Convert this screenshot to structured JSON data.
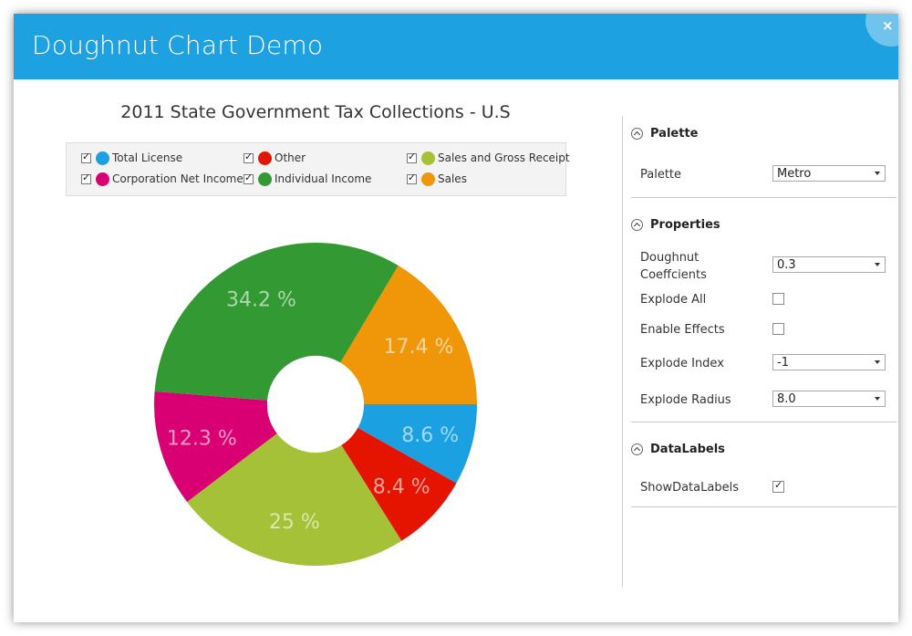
{
  "window": {
    "title": "Doughnut Chart Demo",
    "close_label": "×"
  },
  "chart_data": {
    "type": "doughnut",
    "title": "2011 State Government Tax Collections - U.S",
    "doughnut_coefficient": 0.3,
    "series": [
      {
        "name": "Total License",
        "value": 8.6,
        "label": "8.6 %",
        "color": "#1ba1e2"
      },
      {
        "name": "Other",
        "value": 8.4,
        "label": "8.4 %",
        "color": "#e51400"
      },
      {
        "name": "Sales and Gross Receipt",
        "value": 25,
        "label": "25 %",
        "color": "#a4c137"
      },
      {
        "name": "Corporation Net Income",
        "value": 12.3,
        "label": "12.3 %",
        "color": "#d80073"
      },
      {
        "name": "Individual Income",
        "value": 34.2,
        "label": "34.2 %",
        "color": "#339933"
      },
      {
        "name": "Sales",
        "value": 17.4,
        "label": "17.4 %",
        "color": "#f09609"
      }
    ],
    "legend": [
      {
        "label": "Total License",
        "color": "#1ba1e2",
        "checked": true
      },
      {
        "label": "Other",
        "color": "#e51400",
        "checked": true
      },
      {
        "label": "Sales and Gross Receipt",
        "color": "#a4c137",
        "checked": true
      },
      {
        "label": "Corporation Net Income",
        "color": "#d80073",
        "checked": true
      },
      {
        "label": "Individual Income",
        "color": "#339933",
        "checked": true
      },
      {
        "label": "Sales",
        "color": "#f09609",
        "checked": true
      }
    ]
  },
  "panel": {
    "palette_section": {
      "title": "Palette",
      "palette_label": "Palette",
      "palette_value": "Metro"
    },
    "properties_section": {
      "title": "Properties",
      "doughnut_coefficients_label_line1": "Doughnut",
      "doughnut_coefficients_label_line2": "Coeffcients",
      "doughnut_coefficients_value": "0.3",
      "explode_all_label": "Explode All",
      "explode_all_checked": false,
      "enable_effects_label": "Enable Effects",
      "enable_effects_checked": false,
      "explode_index_label": "Explode Index",
      "explode_index_value": "-1",
      "explode_radius_label": "Explode Radius",
      "explode_radius_value": "8.0"
    },
    "datalabels_section": {
      "title": "DataLabels",
      "show_data_labels_label": "ShowDataLabels",
      "show_data_labels_checked": true,
      "check_glyph": "✓"
    }
  }
}
